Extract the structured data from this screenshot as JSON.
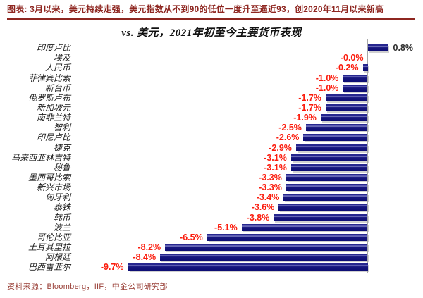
{
  "header": {
    "caption": "图表: 3月以来，美元持续走强，美元指数从不到90的低位一度升至逼近93，创2020年11月以来新高"
  },
  "chart_data": {
    "type": "bar",
    "orientation": "horizontal",
    "title": "vs. 美元，2021年初至今主要货币表现",
    "unit": "%",
    "categories": [
      "印度卢比",
      "埃及",
      "人民币",
      "菲律宾比索",
      "新台币",
      "俄罗斯卢布",
      "新加坡元",
      "南非兰特",
      "智利",
      "印尼卢比",
      "捷克",
      "马来西亚林吉特",
      "秘鲁",
      "墨西哥比索",
      "新兴市场",
      "匈牙利",
      "泰铢",
      "韩币",
      "波兰",
      "哥伦比亚",
      "土耳其里拉",
      "阿根廷",
      "巴西雷亚尔"
    ],
    "values": [
      0.8,
      -0.0,
      -0.2,
      -1.0,
      -1.0,
      -1.7,
      -1.7,
      -1.9,
      -2.5,
      -2.6,
      -2.9,
      -3.1,
      -3.1,
      -3.3,
      -3.3,
      -3.4,
      -3.6,
      -3.8,
      -5.1,
      -6.5,
      -8.2,
      -8.4,
      -9.7
    ],
    "value_labels": [
      "0.8%",
      "-0.0%",
      "-0.2%",
      "-1.0%",
      "-1.0%",
      "-1.7%",
      "-1.7%",
      "-1.9%",
      "-2.5%",
      "-2.6%",
      "-2.9%",
      "-3.1%",
      "-3.1%",
      "-3.3%",
      "-3.3%",
      "-3.4%",
      "-3.6%",
      "-3.8%",
      "-5.1%",
      "-6.5%",
      "-8.2%",
      "-8.4%",
      "-9.7%"
    ],
    "xlim": [
      -11.9,
      2.2
    ],
    "gridlines": false,
    "legend": false,
    "zero_axis_line": true,
    "bar_color": "#15157F",
    "negative_label_color": "#FB1D0E",
    "positive_label_color": "#2E2E2E"
  },
  "footer": {
    "source": "资料来源：Bloomberg，IIF，中金公司研究部"
  },
  "colors": {
    "caption_red": "#8E2620",
    "source_red": "#9A4038",
    "bar_navy": "#15157F",
    "value_red": "#FB1D0E",
    "axis_gray": "#A8A8A8"
  }
}
